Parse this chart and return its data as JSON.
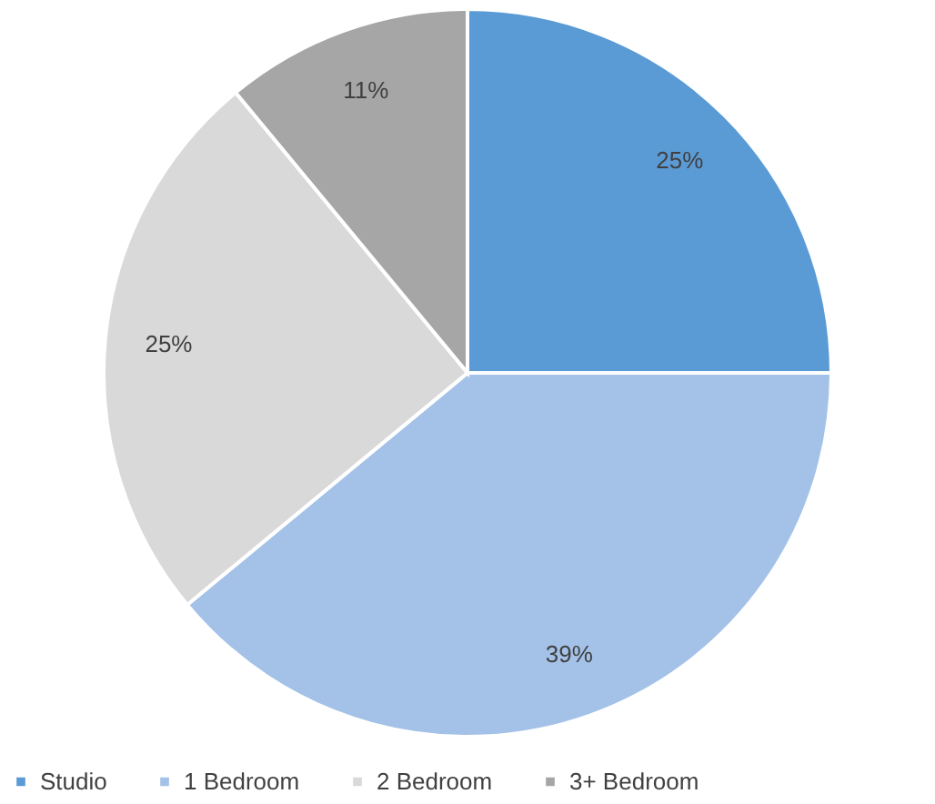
{
  "chart_data": {
    "type": "pie",
    "categories": [
      "Studio",
      "1 Bedroom",
      "2 Bedroom",
      "3+ Bedroom"
    ],
    "values": [
      25,
      39,
      25,
      11
    ],
    "colors": [
      "#5b9bd5",
      "#a4c2e8",
      "#d9d9d9",
      "#a6a6a6"
    ],
    "value_labels": [
      "25%",
      "39%",
      "25%",
      "11%"
    ],
    "legend": "bottom"
  }
}
